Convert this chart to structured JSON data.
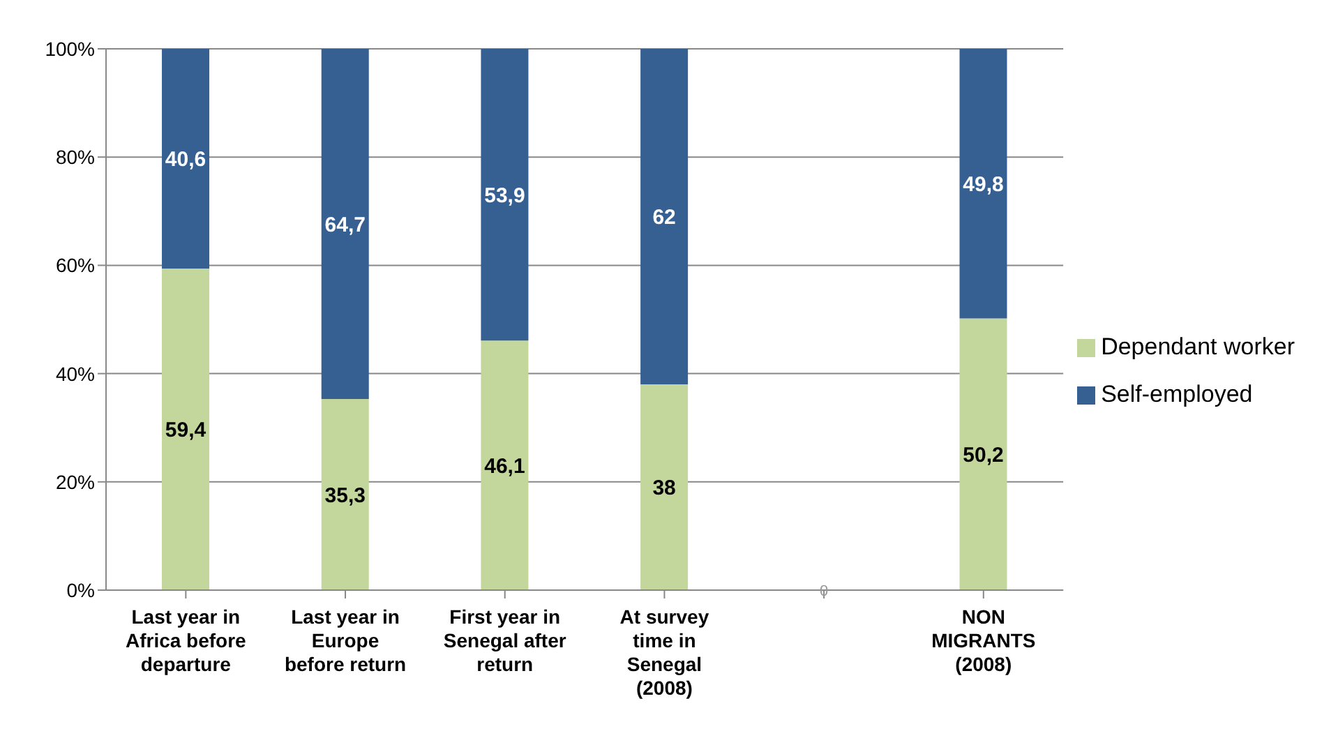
{
  "chart_data": {
    "type": "bar",
    "stacked": true,
    "categories": [
      "Last year in Africa before departure",
      "Last year in Europe before return",
      "First year in Senegal after return",
      "At survey time in Senegal (2008)",
      null,
      "NON MIGRANTS (2008)"
    ],
    "series": [
      {
        "name": "Dependant worker",
        "color": "#c3d69b",
        "values": [
          59.4,
          35.3,
          46.1,
          38,
          0,
          50.2
        ],
        "value_labels": [
          "59,4",
          "35,3",
          "46,1",
          "38",
          "0",
          "50,2"
        ]
      },
      {
        "name": "Self-employed",
        "color": "#366092",
        "values": [
          40.6,
          64.7,
          53.9,
          62,
          null,
          49.8
        ],
        "value_labels": [
          "40,6",
          "64,7",
          "53,9",
          "62",
          null,
          "49,8"
        ]
      }
    ],
    "ylim": [
      0,
      100
    ],
    "yticks": [
      {
        "value": 0,
        "label": "0%"
      },
      {
        "value": 20,
        "label": "20%"
      },
      {
        "value": 40,
        "label": "40%"
      },
      {
        "value": 60,
        "label": "60%"
      },
      {
        "value": 80,
        "label": "80%"
      },
      {
        "value": 100,
        "label": "100%"
      }
    ],
    "grid": "y",
    "legend": "right"
  }
}
